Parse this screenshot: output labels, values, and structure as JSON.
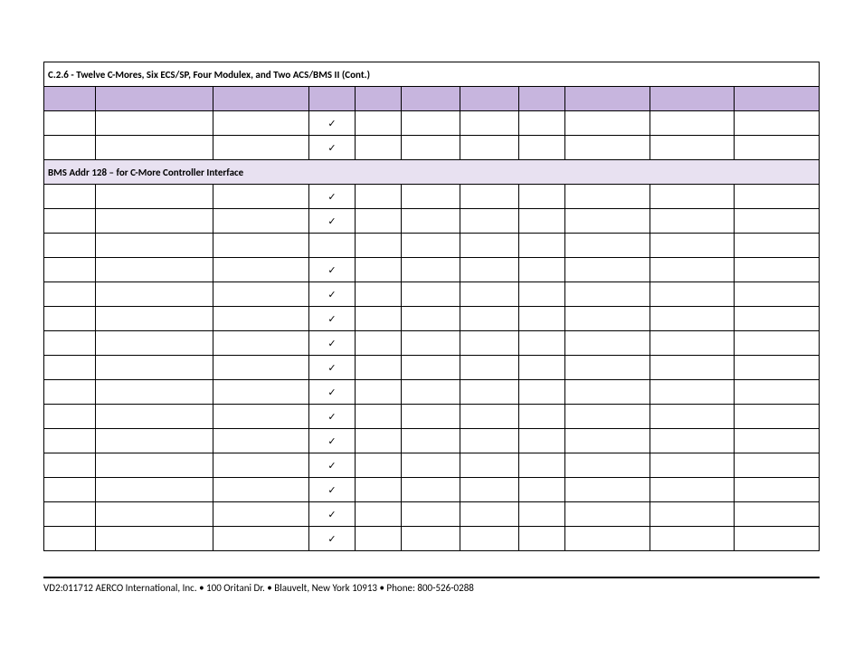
{
  "title": "C.2.6 - Twelve C-Mores, Six ECS/SP, Four Modulex, and Two ACS/BMS II (Cont.)",
  "section_header": "BMS Addr 128 – for C-More Controller Interface",
  "checkmark": "✓",
  "footer": "VD2:011712   AERCO International, Inc. • 100 Oritani Dr. • Blauvelt, New York 10913 • Phone: 800-526-0288",
  "columns": 11,
  "col_classes": [
    "col0",
    "col1",
    "col2",
    "col3",
    "col4",
    "col5",
    "col6",
    "col7",
    "col8",
    "col9",
    "col10"
  ],
  "pre_section_rows": [
    {
      "check_col": 3
    },
    {
      "check_col": 3
    }
  ],
  "post_section_rows": [
    {
      "check_col": 3
    },
    {
      "check_col": 3
    },
    {
      "check_col": null
    },
    {
      "check_col": 3
    },
    {
      "check_col": 3
    },
    {
      "check_col": 3
    },
    {
      "check_col": 3
    },
    {
      "check_col": 3
    },
    {
      "check_col": 3
    },
    {
      "check_col": 3
    },
    {
      "check_col": 3
    },
    {
      "check_col": 3
    },
    {
      "check_col": 3
    },
    {
      "check_col": 3
    },
    {
      "check_col": 3
    }
  ]
}
